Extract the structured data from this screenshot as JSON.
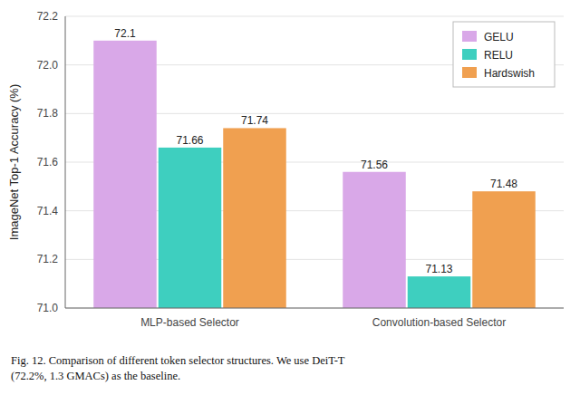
{
  "chart_data": {
    "type": "bar",
    "categories": [
      "MLP-based Selector",
      "Convolution-based Selector"
    ],
    "series": [
      {
        "name": "GELU",
        "color": "#d9a8e8",
        "values": [
          72.1,
          71.56
        ]
      },
      {
        "name": "RELU",
        "color": "#3ecfbf",
        "values": [
          71.66,
          71.13
        ]
      },
      {
        "name": "Hardswish",
        "color": "#f0a050",
        "values": [
          71.74,
          71.48
        ]
      }
    ],
    "y_label": "ImageNet Top-1 Accuracy (%)",
    "caption": "Fig. 12.   Comparison of different token selector structures. We use DeiT-T\n(72.2%, 1.3 GMACs) as the baseline.",
    "ylim": [
      71.0,
      72.2
    ],
    "yticks": [
      {
        "value": 71.0,
        "label": "71.0"
      },
      71.2,
      71.4,
      71.6,
      71.8,
      {
        "value": 72.0,
        "label": "72.0"
      },
      72.2
    ],
    "grid": true,
    "legend": "upper right",
    "data_labels": true
  }
}
